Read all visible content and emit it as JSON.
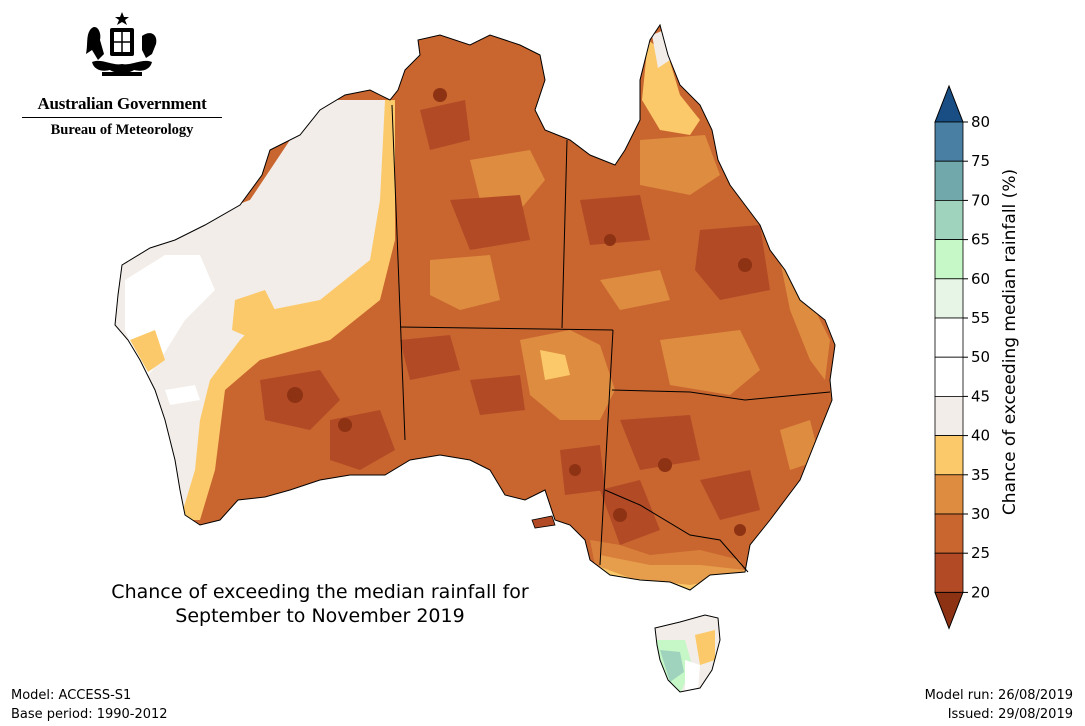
{
  "header": {
    "government": "Australian Government",
    "agency": "Bureau of Meteorology"
  },
  "map": {
    "title_line1": "Chance of exceeding the median rainfall for",
    "title_line2": "September to November 2019",
    "colors": {
      "20-25": "#b24a26",
      "25-30": "#c9652f",
      "30-35": "#de8c40",
      "35-40": "#fbc969",
      "40-45": "#f2ede8",
      "45-55": "#ffffff",
      "55-60": "#e6f5e6",
      "60-65": "#c6f7c6",
      "65-70": "#9fd3bd",
      "70-75": "#70a8ac",
      "75-80": "#4a7fa4",
      "80+": "#194e84",
      "below-20": "#8e3214"
    }
  },
  "colorbar": {
    "title": "Chance of exceeding median rainfall (%)",
    "ticks": [
      "80",
      "75",
      "70",
      "65",
      "60",
      "55",
      "50",
      "45",
      "40",
      "35",
      "30",
      "25",
      "20"
    ]
  },
  "footer": {
    "model": "Model: ACCESS-S1",
    "base_period": "Base period: 1990-2012",
    "model_run": "Model run: 26/08/2019",
    "issued": "Issued: 29/08/2019"
  }
}
